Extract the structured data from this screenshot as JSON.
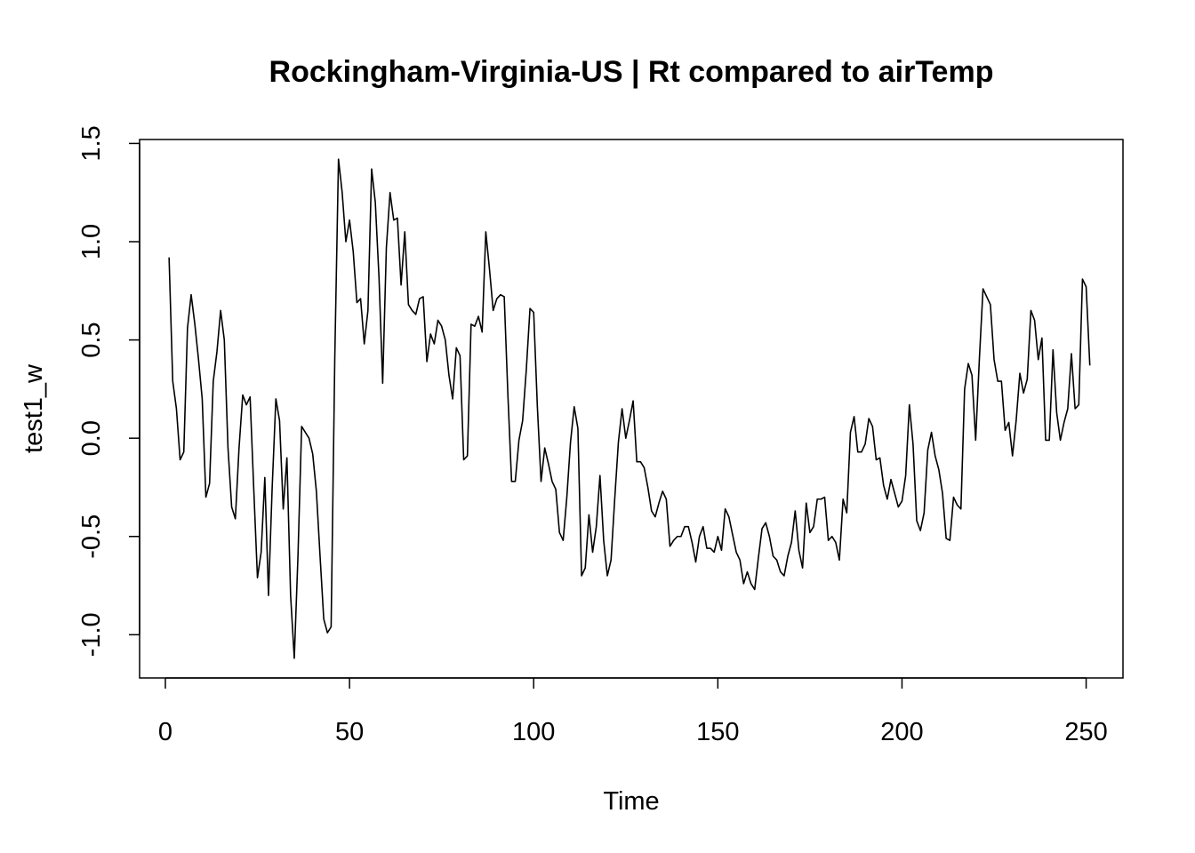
{
  "chart_data": {
    "type": "line",
    "title": "Rockingham-Virginia-US | Rt compared to airTemp",
    "xlabel": "Time",
    "ylabel": "test1_w",
    "xlim": [
      -7,
      260
    ],
    "ylim": [
      -1.22,
      1.52
    ],
    "x_ticks": [
      0,
      50,
      100,
      150,
      200,
      250
    ],
    "x_tick_labels": [
      "0",
      "50",
      "100",
      "150",
      "200",
      "250"
    ],
    "y_ticks": [
      -1.0,
      -0.5,
      0.0,
      0.5,
      1.0,
      1.5
    ],
    "y_tick_labels": [
      "-1.0",
      "-0.5",
      "0.0",
      "0.5",
      "1.0",
      "1.5"
    ],
    "grid": false,
    "legend": "none",
    "line_color": "#000000",
    "series": [
      {
        "x_start": 1,
        "x_step": 1,
        "values": [
          0.92,
          0.29,
          0.15,
          -0.11,
          -0.07,
          0.56,
          0.73,
          0.58,
          0.4,
          0.2,
          -0.3,
          -0.23,
          0.29,
          0.44,
          0.65,
          0.5,
          -0.05,
          -0.35,
          -0.41,
          -0.05,
          0.22,
          0.17,
          0.21,
          -0.26,
          -0.71,
          -0.58,
          -0.2,
          -0.8,
          -0.25,
          0.2,
          0.09,
          -0.36,
          -0.1,
          -0.8,
          -1.12,
          -0.6,
          0.06,
          0.03,
          0.0,
          -0.08,
          -0.27,
          -0.6,
          -0.92,
          -0.99,
          -0.96,
          0.41,
          1.42,
          1.25,
          1.0,
          1.11,
          0.95,
          0.69,
          0.71,
          0.48,
          0.65,
          1.37,
          1.2,
          0.82,
          0.28,
          0.97,
          1.25,
          1.11,
          1.12,
          0.78,
          1.05,
          0.68,
          0.65,
          0.63,
          0.71,
          0.72,
          0.39,
          0.53,
          0.48,
          0.6,
          0.57,
          0.5,
          0.32,
          0.2,
          0.46,
          0.42,
          -0.11,
          -0.09,
          0.58,
          0.57,
          0.62,
          0.54,
          1.05,
          0.86,
          0.65,
          0.71,
          0.73,
          0.72,
          0.22,
          -0.22,
          -0.22,
          -0.01,
          0.09,
          0.35,
          0.66,
          0.64,
          0.16,
          -0.22,
          -0.05,
          -0.13,
          -0.22,
          -0.26,
          -0.48,
          -0.52,
          -0.3,
          -0.02,
          0.16,
          0.05,
          -0.7,
          -0.66,
          -0.39,
          -0.58,
          -0.45,
          -0.19,
          -0.52,
          -0.7,
          -0.62,
          -0.31,
          -0.02,
          0.15,
          0.0,
          0.09,
          0.19,
          -0.12,
          -0.12,
          -0.15,
          -0.25,
          -0.37,
          -0.4,
          -0.33,
          -0.27,
          -0.31,
          -0.55,
          -0.52,
          -0.5,
          -0.5,
          -0.45,
          -0.45,
          -0.53,
          -0.63,
          -0.5,
          -0.45,
          -0.56,
          -0.56,
          -0.58,
          -0.5,
          -0.57,
          -0.36,
          -0.4,
          -0.49,
          -0.58,
          -0.62,
          -0.74,
          -0.68,
          -0.74,
          -0.77,
          -0.61,
          -0.46,
          -0.43,
          -0.5,
          -0.6,
          -0.62,
          -0.68,
          -0.7,
          -0.6,
          -0.53,
          -0.37,
          -0.57,
          -0.66,
          -0.33,
          -0.48,
          -0.45,
          -0.31,
          -0.31,
          -0.3,
          -0.52,
          -0.5,
          -0.53,
          -0.62,
          -0.31,
          -0.38,
          0.03,
          0.11,
          -0.07,
          -0.07,
          -0.03,
          0.1,
          0.06,
          -0.11,
          -0.1,
          -0.24,
          -0.31,
          -0.21,
          -0.28,
          -0.35,
          -0.32,
          -0.19,
          0.17,
          -0.03,
          -0.42,
          -0.47,
          -0.38,
          -0.06,
          0.03,
          -0.09,
          -0.16,
          -0.28,
          -0.51,
          -0.52,
          -0.3,
          -0.34,
          -0.36,
          0.25,
          0.38,
          0.32,
          -0.01,
          0.4,
          0.76,
          0.72,
          0.68,
          0.4,
          0.29,
          0.29,
          0.04,
          0.08,
          -0.09,
          0.09,
          0.33,
          0.23,
          0.3,
          0.65,
          0.6,
          0.4,
          0.51,
          -0.01,
          -0.01,
          0.45,
          0.13,
          -0.01,
          0.08,
          0.15,
          0.43,
          0.15,
          0.17,
          0.81,
          0.77,
          0.37
        ]
      }
    ]
  }
}
